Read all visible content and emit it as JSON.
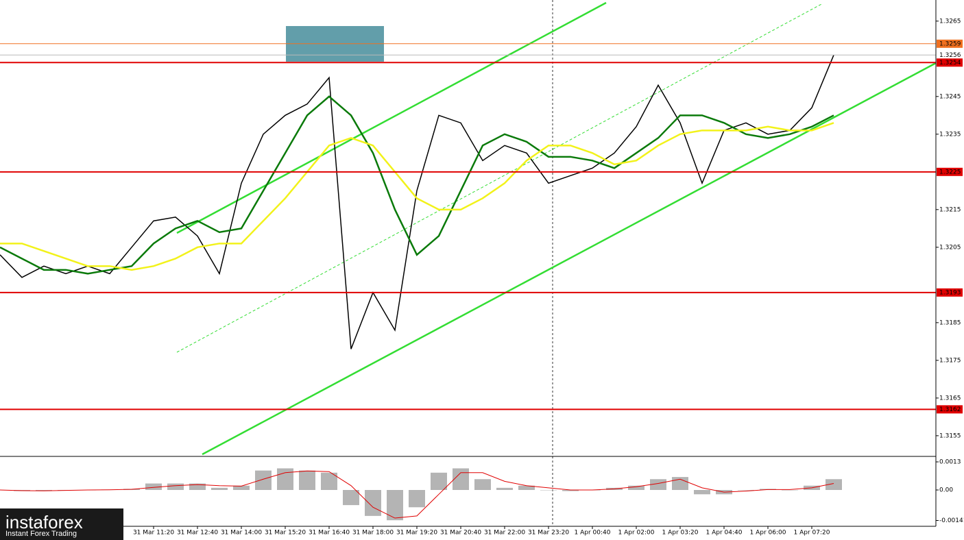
{
  "chart_data": [
    {
      "type": "line",
      "categories": [
        null,
        null,
        null,
        null,
        null,
        null,
        null,
        "31 Mar 11:20",
        null,
        "31 Mar 12:40",
        null,
        "31 Mar 14:00",
        null,
        "31 Mar 15:20",
        null,
        "31 Mar 16:40",
        null,
        "31 Mar 18:00",
        null,
        "31 Mar 19:20",
        null,
        "31 Mar 20:40",
        null,
        "31 Mar 22:00",
        null,
        "31 Mar 23:20",
        null,
        "1 Apr 00:40",
        null,
        "1 Apr 02:00",
        null,
        "1 Apr 03:20",
        null,
        "1 Apr 04:40",
        null,
        "1 Apr 06:00",
        null,
        "1 Apr 07:20",
        null
      ],
      "series": [
        {
          "color": "#000000",
          "values": [
            1.3203,
            1.3197,
            1.32,
            1.3198,
            1.32,
            1.3198,
            1.3205,
            1.3212,
            1.3213,
            1.3208,
            1.3198,
            1.3222,
            1.3235,
            1.324,
            1.3243,
            1.325,
            1.3178,
            1.3193,
            1.3183,
            1.322,
            1.324,
            1.3238,
            1.3228,
            1.3232,
            1.323,
            1.3222,
            1.3224,
            1.3226,
            1.323,
            1.3237,
            1.3248,
            1.3238,
            1.3222,
            1.3236,
            1.3238,
            1.3235,
            1.3236,
            1.3242,
            1.3256
          ]
        },
        {
          "color": "#0a7a0a",
          "values": [
            1.3205,
            1.3202,
            1.3199,
            1.3199,
            1.3198,
            1.3199,
            1.32,
            1.3206,
            1.321,
            1.3212,
            1.3209,
            1.321,
            1.322,
            1.323,
            1.324,
            1.3245,
            1.324,
            1.323,
            1.3215,
            1.3203,
            1.3208,
            1.322,
            1.3232,
            1.3235,
            1.3233,
            1.3229,
            1.3229,
            1.3228,
            1.3226,
            1.323,
            1.3234,
            1.324,
            1.324,
            1.3238,
            1.3235,
            1.3234,
            1.3235,
            1.3237,
            1.324
          ]
        },
        {
          "color": "#f2f21a",
          "values": [
            1.3206,
            1.3206,
            1.3204,
            1.3202,
            1.32,
            1.32,
            1.3199,
            1.32,
            1.3202,
            1.3205,
            1.3206,
            1.3206,
            1.3212,
            1.3218,
            1.3225,
            1.3232,
            1.3234,
            1.3232,
            1.3225,
            1.3218,
            1.3215,
            1.3215,
            1.3218,
            1.3222,
            1.3228,
            1.3232,
            1.3232,
            1.323,
            1.3227,
            1.3228,
            1.3232,
            1.3235,
            1.3236,
            1.3236,
            1.3236,
            1.3237,
            1.3236,
            1.3236,
            1.3238
          ]
        }
      ],
      "levels": [
        {
          "value": 1.3259,
          "color": "#f07020"
        },
        {
          "value": 1.3256,
          "color": "#b8b8b8"
        },
        {
          "value": 1.3254,
          "color": "#e00000"
        },
        {
          "value": 1.3225,
          "color": "#e00000"
        },
        {
          "value": 1.3193,
          "color": "#e00000"
        },
        {
          "value": 1.3162,
          "color": "#e00000"
        }
      ],
      "ylim": [
        1.31497,
        1.32706
      ],
      "yticks": [
        1.3265,
        1.3245,
        1.3235,
        1.3215,
        1.3205,
        1.3185,
        1.3175,
        1.3165,
        1.3155
      ]
    },
    {
      "type": "bar",
      "color": "#b4b4b4",
      "values": [
        0,
        -5e-05,
        -5e-05,
        0,
        0,
        2e-05,
        5e-05,
        0.0003,
        0.0003,
        0.0003,
        0.0001,
        0.0002,
        0.0009,
        0.001,
        0.0009,
        0.0008,
        -0.0007,
        -0.0012,
        -0.0014,
        -0.0008,
        0.0008,
        0.001,
        0.0005,
        0.0001,
        0.0002,
        0,
        -5e-05,
        0,
        0.0001,
        0.0002,
        0.0005,
        0.0006,
        -0.0002,
        -0.0002,
        0,
        5e-05,
        0,
        0.0002,
        0.0005
      ],
      "signal": {
        "color": "#e00000",
        "values": [
          0,
          -3e-05,
          -4e-05,
          -2e-05,
          0,
          1e-05,
          3e-05,
          0.00012,
          0.0002,
          0.00025,
          0.0002,
          0.00018,
          0.0005,
          0.0008,
          0.00088,
          0.00085,
          0.0002,
          -0.0008,
          -0.0013,
          -0.0012,
          -0.0002,
          0.0008,
          0.0008,
          0.0004,
          0.0002,
          0.0001,
          0,
          0,
          5e-05,
          0.00015,
          0.0003,
          0.0005,
          0.0001,
          -0.0001,
          -5e-05,
          2e-05,
          2e-05,
          0.0001,
          0.0003
        ]
      },
      "ylim": [
        -0.00168,
        0.00149
      ],
      "yticks": [
        0.0013,
        {
          "value": 0,
          "label": "0.00"
        },
        -0.00141
      ]
    }
  ],
  "logo": {
    "name": "instaforex",
    "tagline": "Instant Forex Trading"
  }
}
